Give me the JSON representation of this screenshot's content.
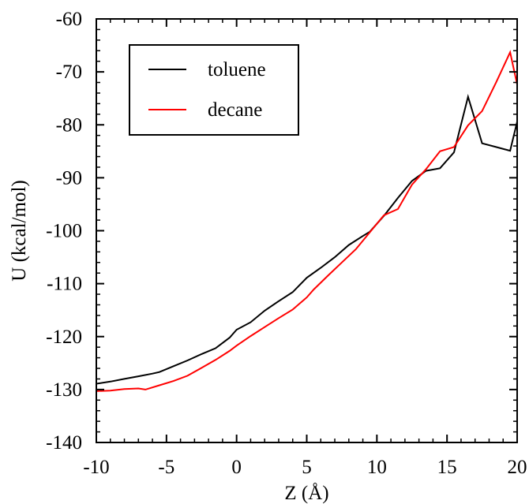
{
  "chart_data": {
    "type": "line",
    "xlabel": "Z (Å)",
    "ylabel": "U (kcal/mol)",
    "xlim": [
      -10,
      20
    ],
    "ylim": [
      -140,
      -60
    ],
    "x_ticks": [
      -10,
      -5,
      0,
      5,
      10,
      15,
      20
    ],
    "y_ticks": [
      -140,
      -130,
      -120,
      -110,
      -100,
      -90,
      -80,
      -70,
      -60
    ],
    "x_tick_labels": [
      "-10",
      "-5",
      "0",
      "5",
      "10",
      "15",
      "20"
    ],
    "y_tick_labels": [
      "-140",
      "-130",
      "-120",
      "-110",
      "-100",
      "-90",
      "-80",
      "-70",
      "-60"
    ],
    "grid": false,
    "legend_position": "top-left",
    "series": [
      {
        "name": "toluene",
        "color": "#000000",
        "x": [
          -10,
          -9,
          -8,
          -7,
          -6,
          -5.5,
          -4.5,
          -3.5,
          -2.5,
          -1.5,
          -0.5,
          0,
          1,
          2,
          3,
          4,
          5,
          6,
          7,
          8,
          9,
          9.5,
          10.5,
          11.5,
          12.5,
          13.5,
          14.5,
          15.5,
          16.5,
          17.5,
          18.5,
          19.5,
          20
        ],
        "y": [
          -128.9,
          -128.5,
          -128,
          -127.5,
          -127,
          -126.7,
          -125.6,
          -124.5,
          -123.3,
          -122.2,
          -120.2,
          -118.7,
          -117.3,
          -115.1,
          -113.3,
          -111.6,
          -108.9,
          -107,
          -105,
          -102.7,
          -101,
          -100.2,
          -97.2,
          -93.8,
          -90.6,
          -88.7,
          -88.2,
          -85.2,
          -74.7,
          -83.5,
          -84.2,
          -84.9,
          -79.4
        ]
      },
      {
        "name": "decane",
        "color": "#ff0000",
        "x": [
          -10,
          -9,
          -8,
          -7,
          -6.5,
          -5.5,
          -4.5,
          -3.5,
          -2.5,
          -1.5,
          -0.5,
          0,
          1,
          2,
          3,
          4,
          5,
          5.5,
          6.5,
          7.5,
          8.5,
          9.5,
          10.5,
          11.5,
          12.5,
          13.5,
          14.5,
          15.5,
          16.5,
          17.5,
          18.5,
          19.5,
          20
        ],
        "y": [
          -130.3,
          -130.2,
          -129.9,
          -129.8,
          -130,
          -129.2,
          -128.4,
          -127.4,
          -125.9,
          -124.4,
          -122.7,
          -121.7,
          -119.9,
          -118.2,
          -116.5,
          -114.9,
          -112.6,
          -111.1,
          -108.5,
          -106,
          -103.5,
          -100.3,
          -97.1,
          -95.9,
          -91.3,
          -88.4,
          -85,
          -84.2,
          -80.1,
          -77.4,
          -72,
          -66.3,
          -72.4
        ]
      }
    ]
  }
}
